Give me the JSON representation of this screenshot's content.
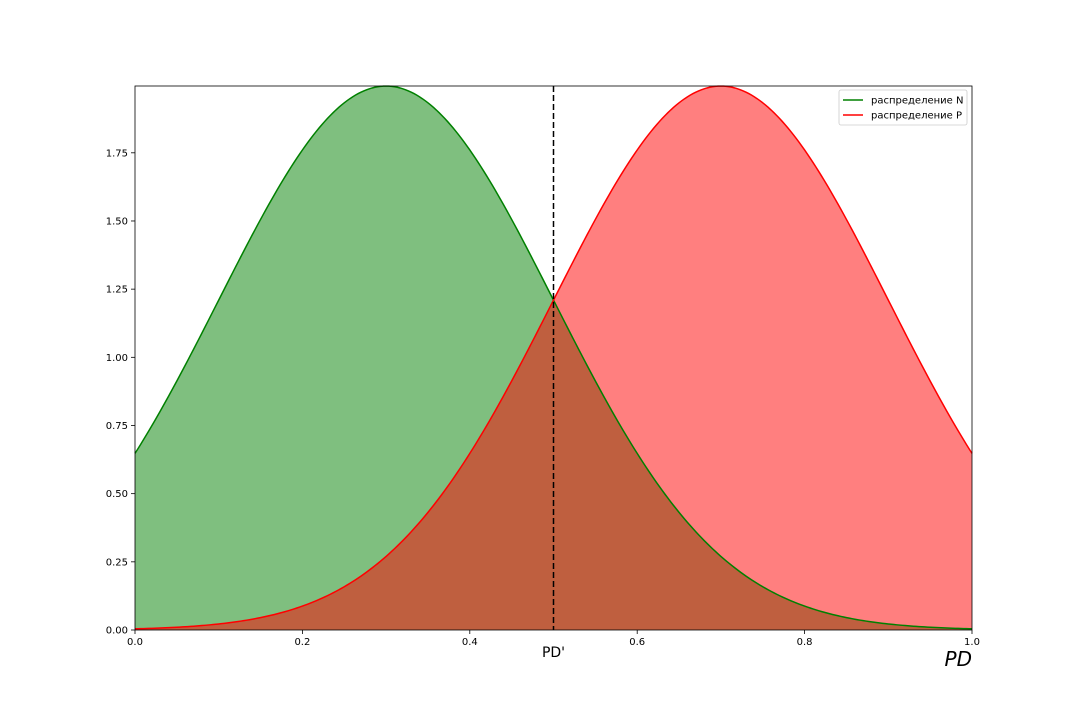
{
  "chart_data": {
    "type": "area",
    "title": "",
    "xlabel": "PD",
    "ylabel": "",
    "xlim": [
      0,
      1
    ],
    "ylim": [
      0,
      1.995
    ],
    "x_ticks": [
      0.0,
      0.2,
      0.4,
      0.6,
      0.8,
      1.0
    ],
    "x_tick_labels": [
      "0.0",
      "0.2",
      "0.4",
      "0.6",
      "0.8",
      "1.0"
    ],
    "y_ticks": [
      0.0,
      0.25,
      0.5,
      0.75,
      1.0,
      1.25,
      1.5,
      1.75
    ],
    "y_tick_labels": [
      "0.00",
      "0.25",
      "0.50",
      "0.75",
      "1.00",
      "1.25",
      "1.50",
      "1.75"
    ],
    "grid": false,
    "legend_position": "top-right",
    "series": [
      {
        "name": "распределение N",
        "color": "#008000",
        "fill_color": "#008000",
        "fill_opacity": 0.5,
        "distribution": "normal",
        "mean": 0.3,
        "sd": 0.2
      },
      {
        "name": "распределение P",
        "color": "#ff0000",
        "fill_color": "#ff0000",
        "fill_opacity": 0.5,
        "distribution": "normal",
        "mean": 0.7,
        "sd": 0.2
      }
    ],
    "threshold": {
      "x": 0.5,
      "label": "PD'",
      "style": "dashed",
      "color": "#000000"
    }
  }
}
